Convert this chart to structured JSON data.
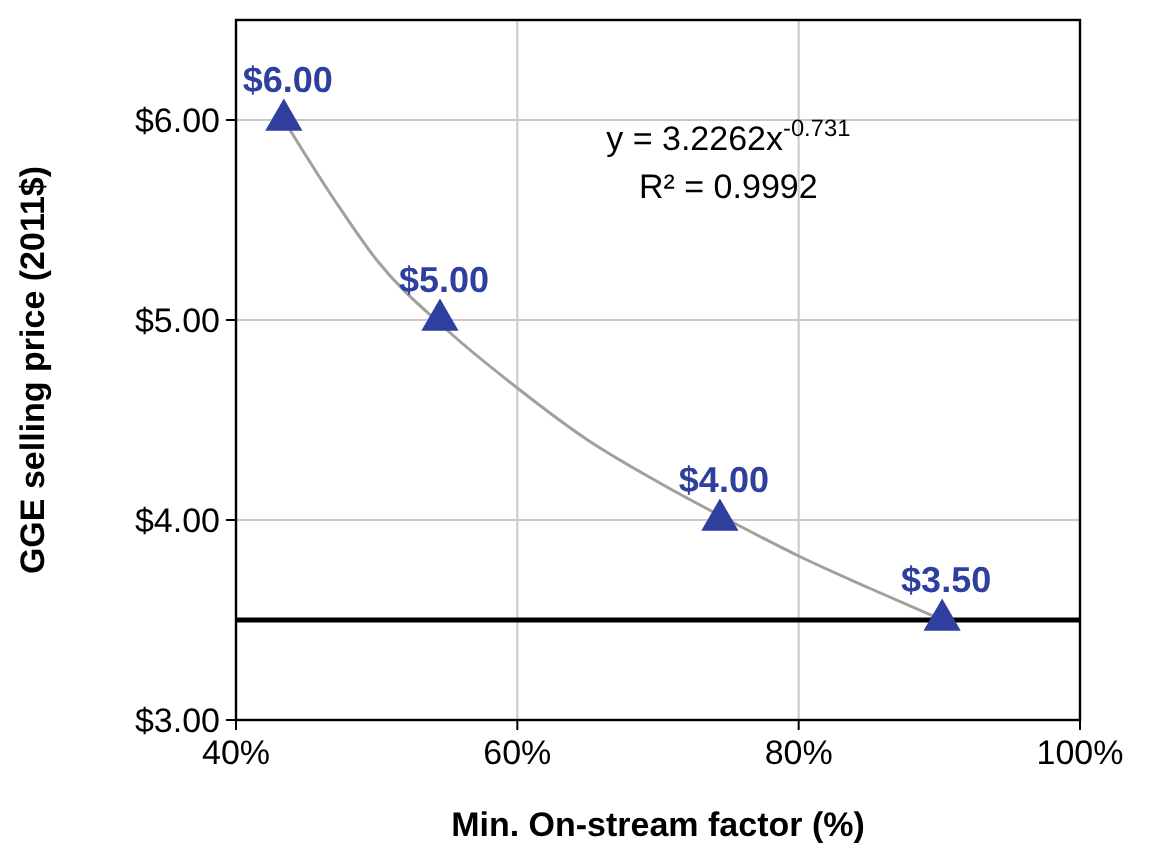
{
  "chart_data": {
    "type": "scatter",
    "xlabel": "Min. On-stream factor (%)",
    "ylabel": "GGE selling price (2011$)",
    "xlim": [
      40,
      100
    ],
    "xticks": [
      {
        "value": 40,
        "label": "40%"
      },
      {
        "value": 60,
        "label": "60%"
      },
      {
        "value": 80,
        "label": "80%"
      },
      {
        "value": 100,
        "label": "100%"
      }
    ],
    "ylim": [
      3,
      6.5
    ],
    "yticks": [
      {
        "value": 3,
        "label": "$3.00"
      },
      {
        "value": 4,
        "label": "$4.00"
      },
      {
        "value": 5,
        "label": "$5.00"
      },
      {
        "value": 6,
        "label": "$6.00"
      }
    ],
    "grid": true,
    "marker": "triangle",
    "series": [
      {
        "color": "#2f3f9e",
        "x": [
          43.4,
          54.5,
          74.4,
          90.2
        ],
        "values": [
          6.0,
          5.0,
          4.0,
          3.5
        ],
        "value_labels": [
          "$6.00",
          "$5.00",
          "$4.00",
          "$3.50"
        ]
      },
      {
        "type": "line",
        "color": "#a0a0a0",
        "marker": "none",
        "x": [
          43.4,
          47,
          50,
          55,
          60,
          65,
          70,
          75,
          80,
          85,
          90.2
        ],
        "values": [
          6.0,
          5.6,
          5.3,
          4.95,
          4.66,
          4.4,
          4.19,
          4.0,
          3.82,
          3.66,
          3.5
        ]
      }
    ],
    "ref_lines": [
      {
        "axis": "y",
        "value": 3.5,
        "color": "#000000"
      }
    ],
    "annotations": [
      "y = 3.2262x$^{-0.731}$",
      "R² = 0.9992"
    ]
  }
}
